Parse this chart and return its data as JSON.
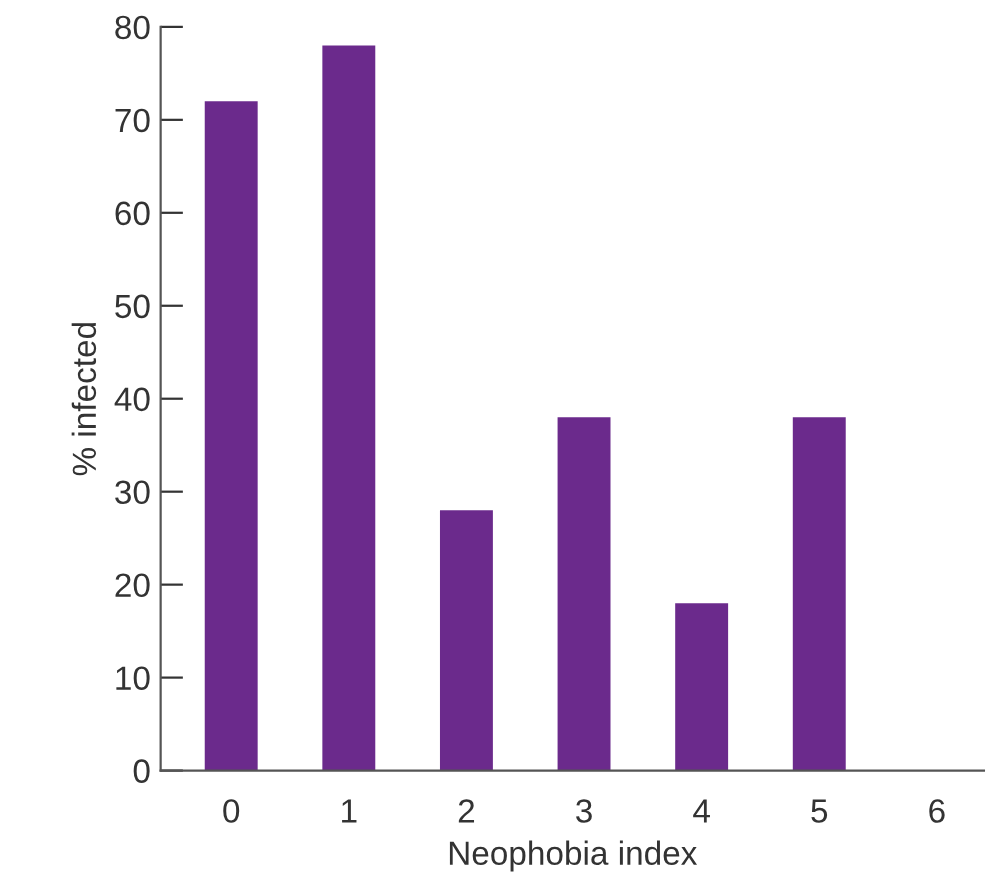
{
  "chart_data": {
    "type": "bar",
    "xlabel": "Neophobia index",
    "ylabel": "% infected",
    "categories": [
      "0",
      "1",
      "2",
      "3",
      "4",
      "5",
      "6"
    ],
    "values": [
      72,
      78,
      28,
      38,
      18,
      38,
      null
    ],
    "color": "#6b2a8c",
    "ylim": [
      0,
      80
    ],
    "yticks": [
      0,
      10,
      20,
      30,
      40,
      50,
      60,
      70,
      80
    ],
    "grid": false
  }
}
